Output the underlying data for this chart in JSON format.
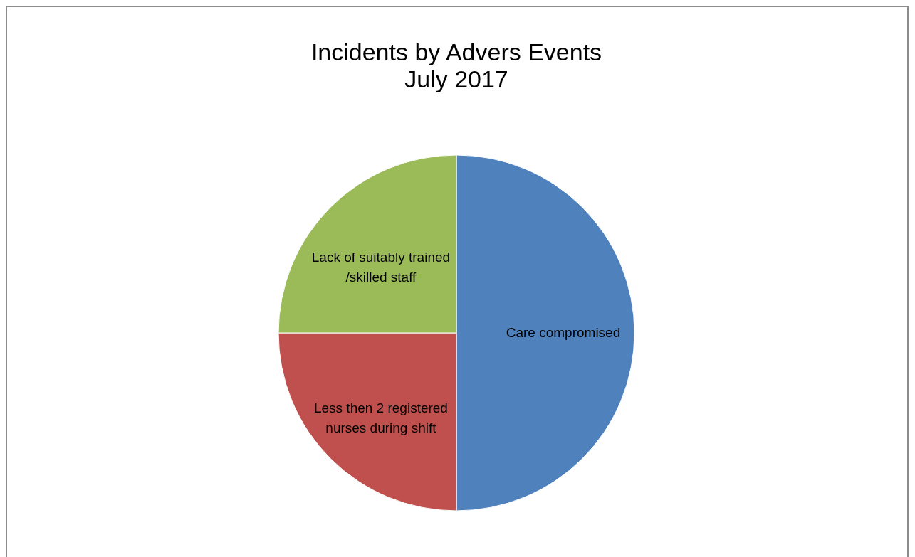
{
  "chart_data": {
    "type": "pie",
    "title": "Incidents by Advers Events",
    "subtitle": "July 2017",
    "categories": [
      "Care compromised",
      "Less then 2 registered nurses during shift",
      "Lack of suitably trained /skilled staff"
    ],
    "values": [
      50,
      25,
      25
    ],
    "colors": [
      "#4f81bd",
      "#c0504d",
      "#9bbb59"
    ],
    "legend": false
  }
}
